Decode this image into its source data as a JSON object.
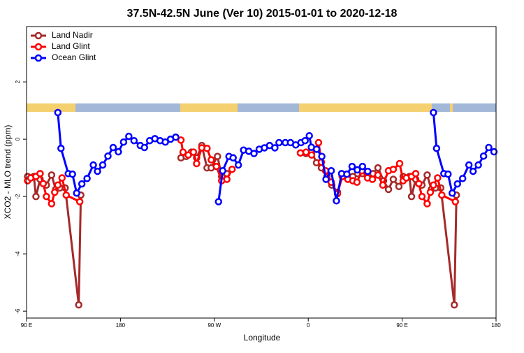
{
  "chart_data": {
    "type": "line",
    "title": "37.5N-42.5N June (Ver 10)   2015-01-01 to 2020-12-18",
    "x_label": "Longitude",
    "y_label": "XCO2 - MLO trend (ppm)",
    "xlim": [
      90,
      540
    ],
    "xticks": [
      {
        "value": 90,
        "label": "90 E"
      },
      180,
      {
        "value": 270,
        "label": "90 W"
      },
      {
        "value": 360,
        "label": "0"
      },
      {
        "value": 450,
        "label": "90 E"
      },
      {
        "value": 540,
        "label": "180"
      }
    ],
    "ylim": [
      -6.24,
      3.93
    ],
    "yticks": [
      -6,
      -4,
      -2,
      0,
      2
    ],
    "legend": "top-left",
    "series": [
      {
        "name": "Land Nadir",
        "color": "#a52a2a",
        "x": [
          91,
          97,
          99,
          103,
          109,
          114,
          118,
          122,
          127,
          140,
          142,
          null,
          238,
          243,
          248,
          253,
          258,
          263,
          267,
          273,
          277,
          282,
          null,
          352.5,
          357.9,
          363.2,
          367.9,
          372.6,
          377.9,
          382.6,
          388,
          392.6,
          397.3,
          402.7,
          407.4,
          412.1,
          417.4,
          422.1,
          426.8,
          432.2,
          436.9,
          441.5,
          446.9,
          451,
          457,
          459,
          463,
          469,
          474,
          478,
          482,
          487,
          500,
          502
        ],
        "values": [
          -1.3,
          -1.3,
          -2.0,
          -1.4,
          -1.6,
          -1.25,
          -1.75,
          -1.7,
          -1.7,
          -5.78,
          -1.95,
          null,
          -0.65,
          -0.6,
          -0.45,
          -0.65,
          -0.22,
          -1.0,
          -1.0,
          -0.6,
          -1.3,
          -1.2,
          null,
          -0.48,
          -0.5,
          -0.45,
          -0.82,
          -1.0,
          -1.3,
          -1.6,
          -1.85,
          -1.3,
          -1.3,
          -1.3,
          -1.2,
          -1.2,
          -1.2,
          -1.2,
          -1.0,
          -1.45,
          -1.75,
          -1.4,
          -1.65,
          -1.3,
          -1.3,
          -2.0,
          -1.4,
          -1.6,
          -1.25,
          -1.75,
          -1.7,
          -1.7,
          -5.78,
          -1.95
        ]
      },
      {
        "name": "Land Glint",
        "color": "#ff0000",
        "x": [
          91,
          94,
          99,
          103,
          106,
          109,
          114,
          117,
          120,
          124,
          128,
          141,
          null,
          238,
          240,
          245,
          250,
          253,
          258,
          263,
          267,
          272,
          277,
          282,
          287,
          null,
          352.5,
          357.9,
          363.2,
          369.9,
          372.6,
          376.6,
          382,
          388,
          392.6,
          398,
          402.7,
          406.7,
          411.4,
          416.8,
          421.5,
          426.8,
          431.5,
          436.9,
          441.5,
          447.6,
          451,
          454,
          459,
          463,
          466,
          469,
          474,
          477,
          480,
          484,
          488,
          501
        ],
        "values": [
          -1.45,
          -1.35,
          -1.3,
          -1.2,
          -1.55,
          -2.0,
          -2.25,
          -1.85,
          -1.6,
          -1.35,
          -1.95,
          -2.18,
          null,
          -0.03,
          -0.45,
          -0.55,
          -0.45,
          -0.85,
          -0.3,
          -0.32,
          -0.72,
          -0.95,
          -1.45,
          -1.4,
          -1.05,
          null,
          -0.48,
          -0.45,
          -0.55,
          -0.12,
          -0.8,
          -1.1,
          -1.5,
          -1.9,
          -1.3,
          -1.4,
          -1.45,
          -1.5,
          -1.1,
          -1.35,
          -1.4,
          -1.25,
          -1.6,
          -1.1,
          -1.05,
          -0.85,
          -1.45,
          -1.35,
          -1.3,
          -1.2,
          -1.55,
          -2.0,
          -2.25,
          -1.85,
          -1.6,
          -1.35,
          -1.95,
          -2.18
        ]
      },
      {
        "name": "Ocean Glint",
        "color": "#0000ff",
        "x": [
          120,
          123,
          130,
          134,
          138,
          143,
          148,
          154,
          158,
          163,
          168,
          173,
          178,
          183,
          188,
          193,
          199,
          203,
          208,
          213,
          218,
          223,
          228,
          233,
          null,
          274,
          278,
          284,
          288,
          293,
          298,
          303,
          308,
          313,
          318,
          323,
          328,
          332,
          338,
          343,
          348,
          353,
          357,
          361,
          363,
          368,
          373,
          377,
          382,
          387,
          392,
          397,
          402,
          407,
          412,
          417,
          null,
          480,
          483,
          490,
          494,
          498,
          503,
          508,
          514,
          518,
          523,
          528,
          533,
          538
        ],
        "values": [
          0.93,
          -0.32,
          -1.2,
          -1.22,
          -1.88,
          -1.56,
          -1.37,
          -0.9,
          -1.12,
          -0.9,
          -0.59,
          -0.29,
          -0.44,
          -0.1,
          0.1,
          -0.05,
          -0.22,
          -0.29,
          -0.05,
          0.02,
          -0.05,
          -0.1,
          0.0,
          0.07,
          null,
          -2.18,
          -1.1,
          -0.6,
          -0.65,
          -0.9,
          -0.38,
          -0.42,
          -0.5,
          -0.35,
          -0.3,
          -0.22,
          -0.3,
          -0.12,
          -0.12,
          -0.12,
          -0.2,
          -0.12,
          -0.05,
          0.12,
          -0.28,
          -0.35,
          -0.6,
          -1.4,
          -1.1,
          -2.15,
          -1.2,
          -1.22,
          -0.95,
          -1.07,
          -0.95,
          -1.12,
          null,
          0.93,
          -0.32,
          -1.2,
          -1.22,
          -1.88,
          -1.56,
          -1.37,
          -0.9,
          -1.12,
          -0.9,
          -0.59,
          -0.29,
          -0.44
        ]
      }
    ]
  }
}
